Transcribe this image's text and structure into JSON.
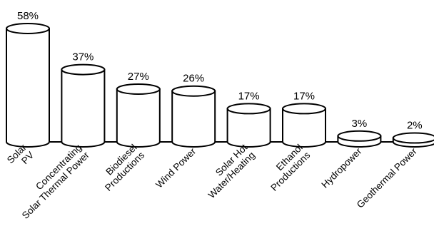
{
  "chart_data": {
    "type": "bar",
    "title": "",
    "xlabel": "",
    "ylabel": "",
    "ylim": [
      0,
      58
    ],
    "grid": false,
    "categories": [
      [
        "Solar",
        "PV"
      ],
      [
        "Concentrating",
        "Solar Thermal Power"
      ],
      [
        "Biodiesel",
        "Productions"
      ],
      [
        "Wind Power"
      ],
      [
        "Solar Hot",
        "Water/Heating"
      ],
      [
        "Ethanol",
        "Productions"
      ],
      [
        "Hydropower"
      ],
      [
        "Geothermal Power"
      ]
    ],
    "values": [
      58,
      37,
      27,
      26,
      17,
      17,
      3,
      2
    ],
    "value_labels": [
      "58%",
      "37%",
      "27%",
      "26%",
      "17%",
      "17%",
      "3%",
      "2%"
    ],
    "colors": {
      "fill": "#ffffff",
      "stroke": "#000000"
    }
  }
}
